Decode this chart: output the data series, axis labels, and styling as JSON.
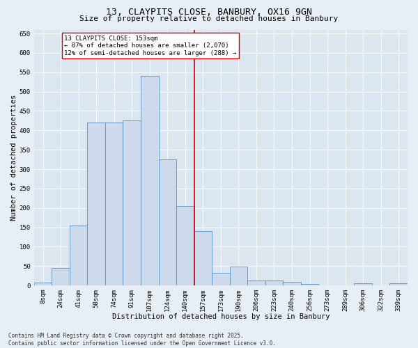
{
  "title1": "13, CLAYPITS CLOSE, BANBURY, OX16 9GN",
  "title2": "Size of property relative to detached houses in Banbury",
  "xlabel": "Distribution of detached houses by size in Banbury",
  "ylabel": "Number of detached properties",
  "categories": [
    "8sqm",
    "24sqm",
    "41sqm",
    "58sqm",
    "74sqm",
    "91sqm",
    "107sqm",
    "124sqm",
    "140sqm",
    "157sqm",
    "173sqm",
    "190sqm",
    "206sqm",
    "223sqm",
    "240sqm",
    "256sqm",
    "273sqm",
    "289sqm",
    "306sqm",
    "322sqm",
    "339sqm"
  ],
  "bar_values": [
    8,
    45,
    155,
    420,
    420,
    425,
    540,
    325,
    205,
    140,
    33,
    48,
    13,
    13,
    10,
    3,
    0,
    0,
    6,
    0,
    6
  ],
  "bar_color": "#cddaeb",
  "bar_edge_color": "#5b8fc9",
  "vline_x_index": 8,
  "vline_color": "#cc0000",
  "annotation_text": "13 CLAYPITS CLOSE: 153sqm\n← 87% of detached houses are smaller (2,070)\n12% of semi-detached houses are larger (288) →",
  "annotation_box_color": "#ffffff",
  "annotation_box_edge": "#cc0000",
  "ylim": [
    0,
    660
  ],
  "yticks": [
    0,
    50,
    100,
    150,
    200,
    250,
    300,
    350,
    400,
    450,
    500,
    550,
    600,
    650
  ],
  "bg_color": "#e8eef5",
  "plot_bg_color": "#dce6f0",
  "footer": "Contains HM Land Registry data © Crown copyright and database right 2025.\nContains public sector information licensed under the Open Government Licence v3.0.",
  "title1_fontsize": 9.5,
  "title2_fontsize": 8.0,
  "axis_label_fontsize": 7.5,
  "tick_fontsize": 6.5,
  "footer_fontsize": 5.5,
  "annotation_fontsize": 6.5
}
